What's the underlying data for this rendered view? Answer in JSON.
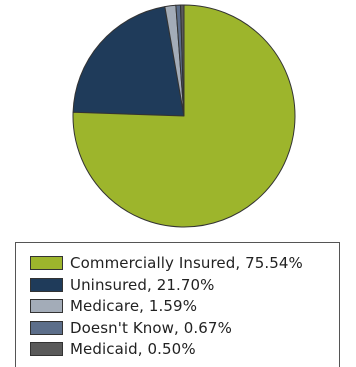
{
  "chart_data": {
    "type": "pie",
    "title": "",
    "slices": [
      {
        "label": "Commercially Insured, 75.54%",
        "name": "Commercially Insured",
        "value": 75.54,
        "color": "#9db52c"
      },
      {
        "label": "Uninsured, 21.70%",
        "name": "Uninsured",
        "value": 21.7,
        "color": "#1f3b5a"
      },
      {
        "label": "Medicare, 1.59%",
        "name": "Medicare",
        "value": 1.59,
        "color": "#a3acb8"
      },
      {
        "label": "Doesn't Know, 0.67%",
        "name": "Doesn't Know",
        "value": 0.67,
        "color": "#5c6e8a"
      },
      {
        "label": "Medicaid, 0.50%",
        "name": "Medicaid",
        "value": 0.5,
        "color": "#5a5a5a"
      }
    ],
    "start_angle": "12 o'clock",
    "direction": "clockwise",
    "legend_placement": "bottom"
  }
}
